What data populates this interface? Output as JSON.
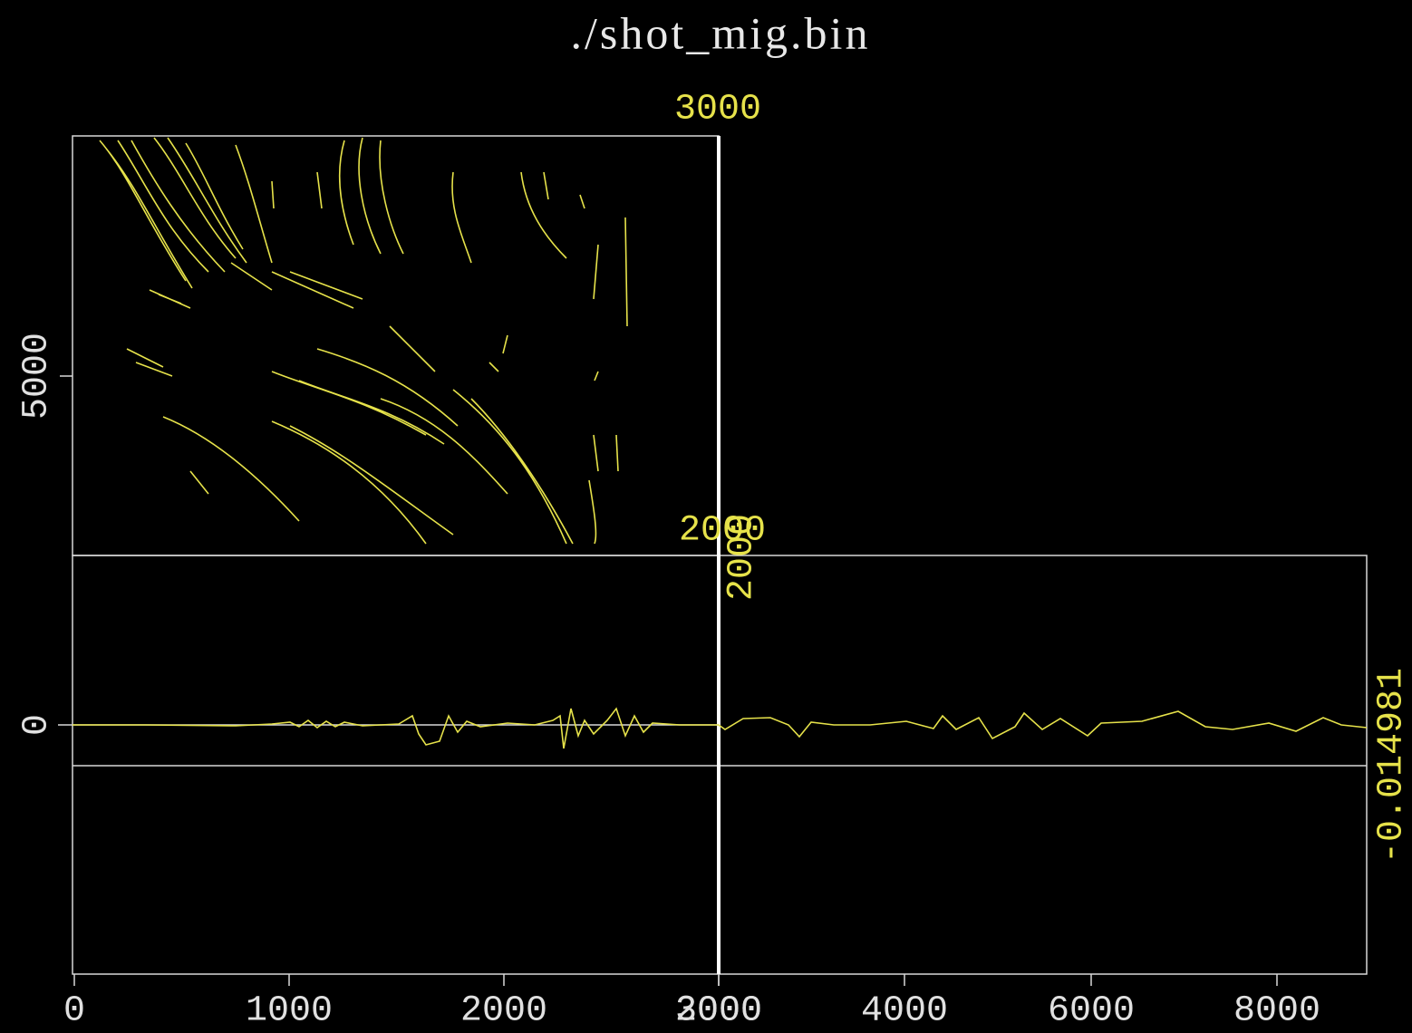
{
  "title": "./shot_mig.bin",
  "top_label": "3000",
  "left_axis": {
    "ticks": [
      "5000",
      "0"
    ]
  },
  "overlay_labels": [
    "2000",
    "2000"
  ],
  "right_label": "-0.014981",
  "bottom_axis": {
    "ticks": [
      "0",
      "1000",
      "2000",
      "3000",
      "2000",
      "4000",
      "6000",
      "8000"
    ]
  }
}
